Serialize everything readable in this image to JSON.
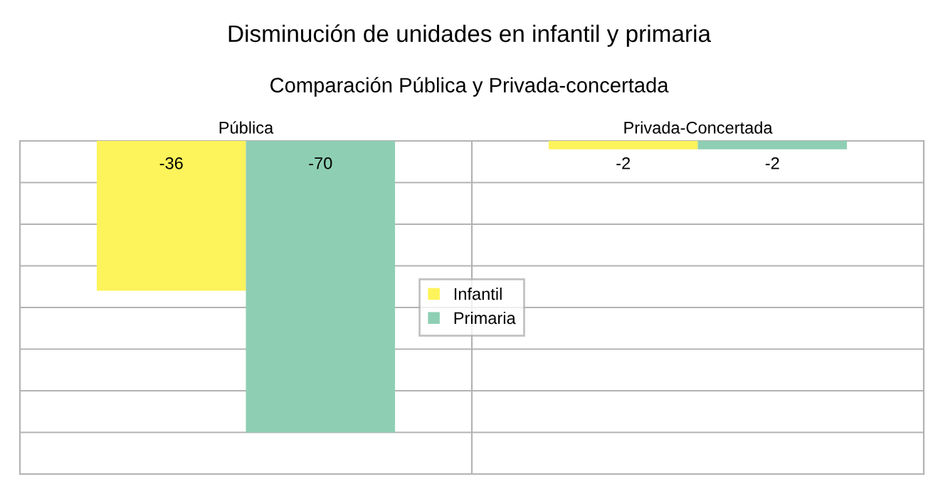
{
  "chart_data": {
    "type": "bar",
    "title": "Disminución de unidades en infantil y primaria",
    "subtitle": "Comparación Pública y Privada-concertada",
    "categories": [
      "Pública",
      "Privada-Concertada"
    ],
    "series": [
      {
        "name": "Infantil",
        "color": "#fdf35a",
        "values": [
          -36,
          -2
        ]
      },
      {
        "name": "Primaria",
        "color": "#8ecfb4",
        "values": [
          -70,
          -2
        ]
      }
    ],
    "ylim": [
      -80,
      0
    ],
    "yticks": [
      {
        "value": -80,
        "label": null
      },
      {
        "value": -70,
        "label": null
      },
      {
        "value": -60,
        "label": null
      },
      {
        "value": -50,
        "label": null
      },
      {
        "value": -40,
        "label": null
      },
      {
        "value": -30,
        "label": null
      },
      {
        "value": -20,
        "label": null
      },
      {
        "value": -10,
        "label": null
      },
      {
        "value": 0,
        "label": null
      }
    ],
    "tick_labels": "x",
    "grid": true,
    "legend": "center",
    "data_labels": true
  }
}
